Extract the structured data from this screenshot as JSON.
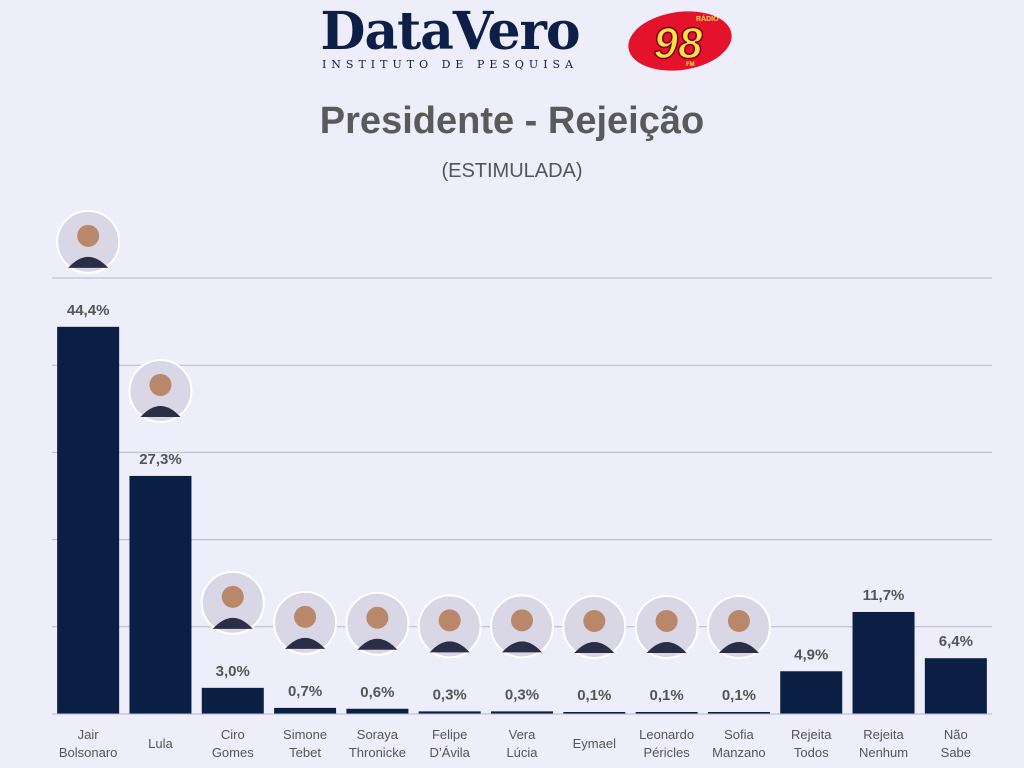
{
  "header": {
    "logo_brand": "DataVero",
    "logo_tagline": "INSTITUTO DE PESQUISA",
    "radio_logo_number": "98",
    "radio_logo_top": "RÁDIO",
    "radio_logo_bottom": "FM"
  },
  "colors": {
    "bar": "#0b1f45",
    "background": "#eeedfa",
    "gridline": "#b8b8c8",
    "label": "#555555"
  },
  "chart_data": {
    "type": "bar",
    "title": "Presidente - Rejeição",
    "subtitle": "(ESTIMULADA)",
    "xlabel": "",
    "ylabel": "",
    "ylim": [
      0,
      50
    ],
    "grid": true,
    "categories": [
      [
        "Jair",
        "Bolsonaro"
      ],
      [
        "Lula"
      ],
      [
        "Ciro",
        "Gomes"
      ],
      [
        "Simone",
        "Tebet"
      ],
      [
        "Soraya",
        "Thronicke"
      ],
      [
        "Felipe",
        "D’Ávila"
      ],
      [
        "Vera",
        "Lúcia"
      ],
      [
        "Eymael"
      ],
      [
        "Leonardo",
        "Péricles"
      ],
      [
        "Sofia",
        "Manzano"
      ],
      [
        "Rejeita",
        "Todos"
      ],
      [
        "Rejeita",
        "Nenhum"
      ],
      [
        "Não",
        "Sabe"
      ]
    ],
    "values": [
      44.4,
      27.3,
      3.0,
      0.7,
      0.6,
      0.3,
      0.3,
      0.1,
      0.1,
      0.1,
      4.9,
      11.7,
      6.4
    ],
    "value_labels": [
      "44,4%",
      "27,3%",
      "3,0%",
      "0,7%",
      "0,6%",
      "0,3%",
      "0,3%",
      "0,1%",
      "0,1%",
      "0,1%",
      "4,9%",
      "11,7%",
      "6,4%"
    ],
    "has_photo": [
      true,
      true,
      true,
      true,
      true,
      true,
      true,
      true,
      true,
      true,
      false,
      false,
      false
    ]
  }
}
